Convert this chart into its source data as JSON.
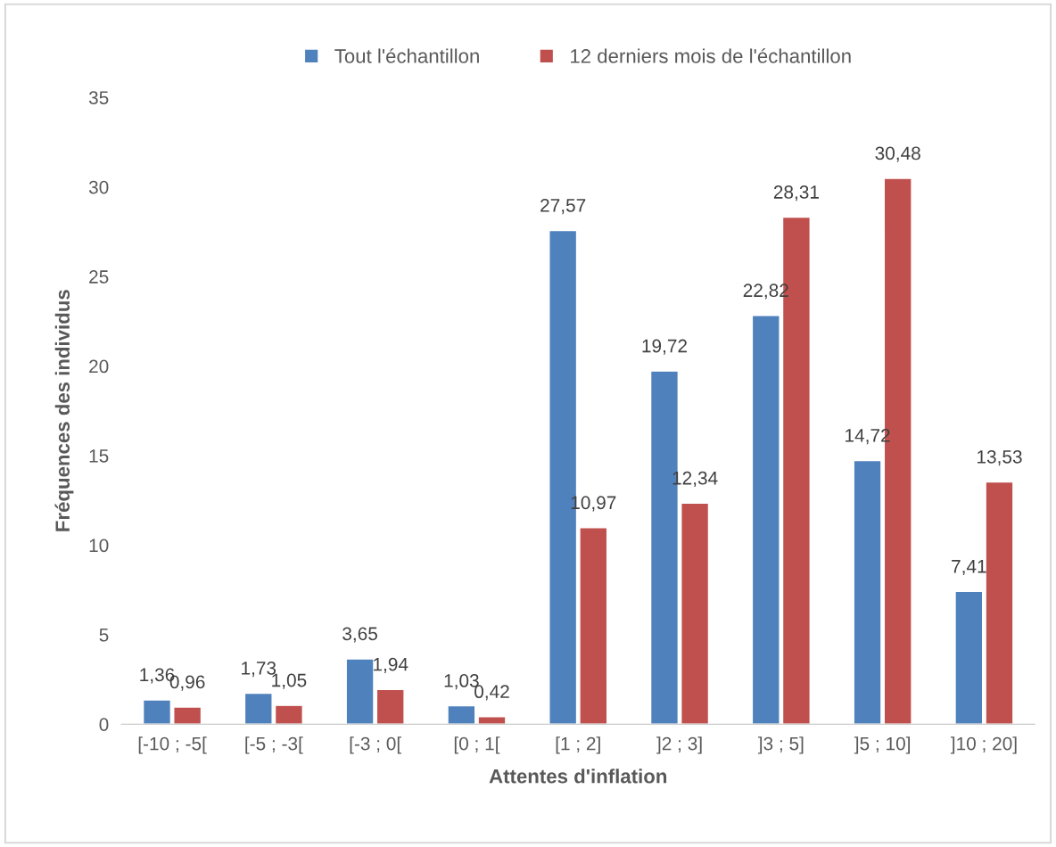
{
  "chart_data": {
    "type": "bar",
    "xlabel": "Attentes d'inflation",
    "ylabel": "Fréquences des individus",
    "categories": [
      "[-10 ; -5[",
      "[-5 ; -3[",
      "[-3 ; 0[",
      "[0 ; 1[",
      "[1 ; 2]",
      "]2 ; 3]",
      "]3 ; 5]",
      "]5 ; 10]",
      "]10 ; 20]"
    ],
    "series": [
      {
        "name": "Tout l'échantillon",
        "color": "#4f81bd",
        "values": [
          1.36,
          1.73,
          3.65,
          1.03,
          27.57,
          19.72,
          22.82,
          14.72,
          7.41
        ],
        "value_labels": [
          "1,36",
          "1,73",
          "3,65",
          "1,03",
          "27,57",
          "19,72",
          "22,82",
          "14,72",
          "7,41"
        ]
      },
      {
        "name": "12 derniers mois de l'échantillon",
        "color": "#c0504d",
        "values": [
          0.96,
          1.05,
          1.94,
          0.42,
          10.97,
          12.34,
          28.31,
          30.48,
          13.53
        ],
        "value_labels": [
          "0,96",
          "1,05",
          "1,94",
          "0,42",
          "10,97",
          "12,34",
          "28,31",
          "30,48",
          "13,53"
        ]
      }
    ],
    "ylim": [
      0,
      35
    ],
    "yticks": [
      0,
      5,
      10,
      15,
      20,
      25,
      30,
      35
    ],
    "grid": false,
    "legend": "top"
  }
}
